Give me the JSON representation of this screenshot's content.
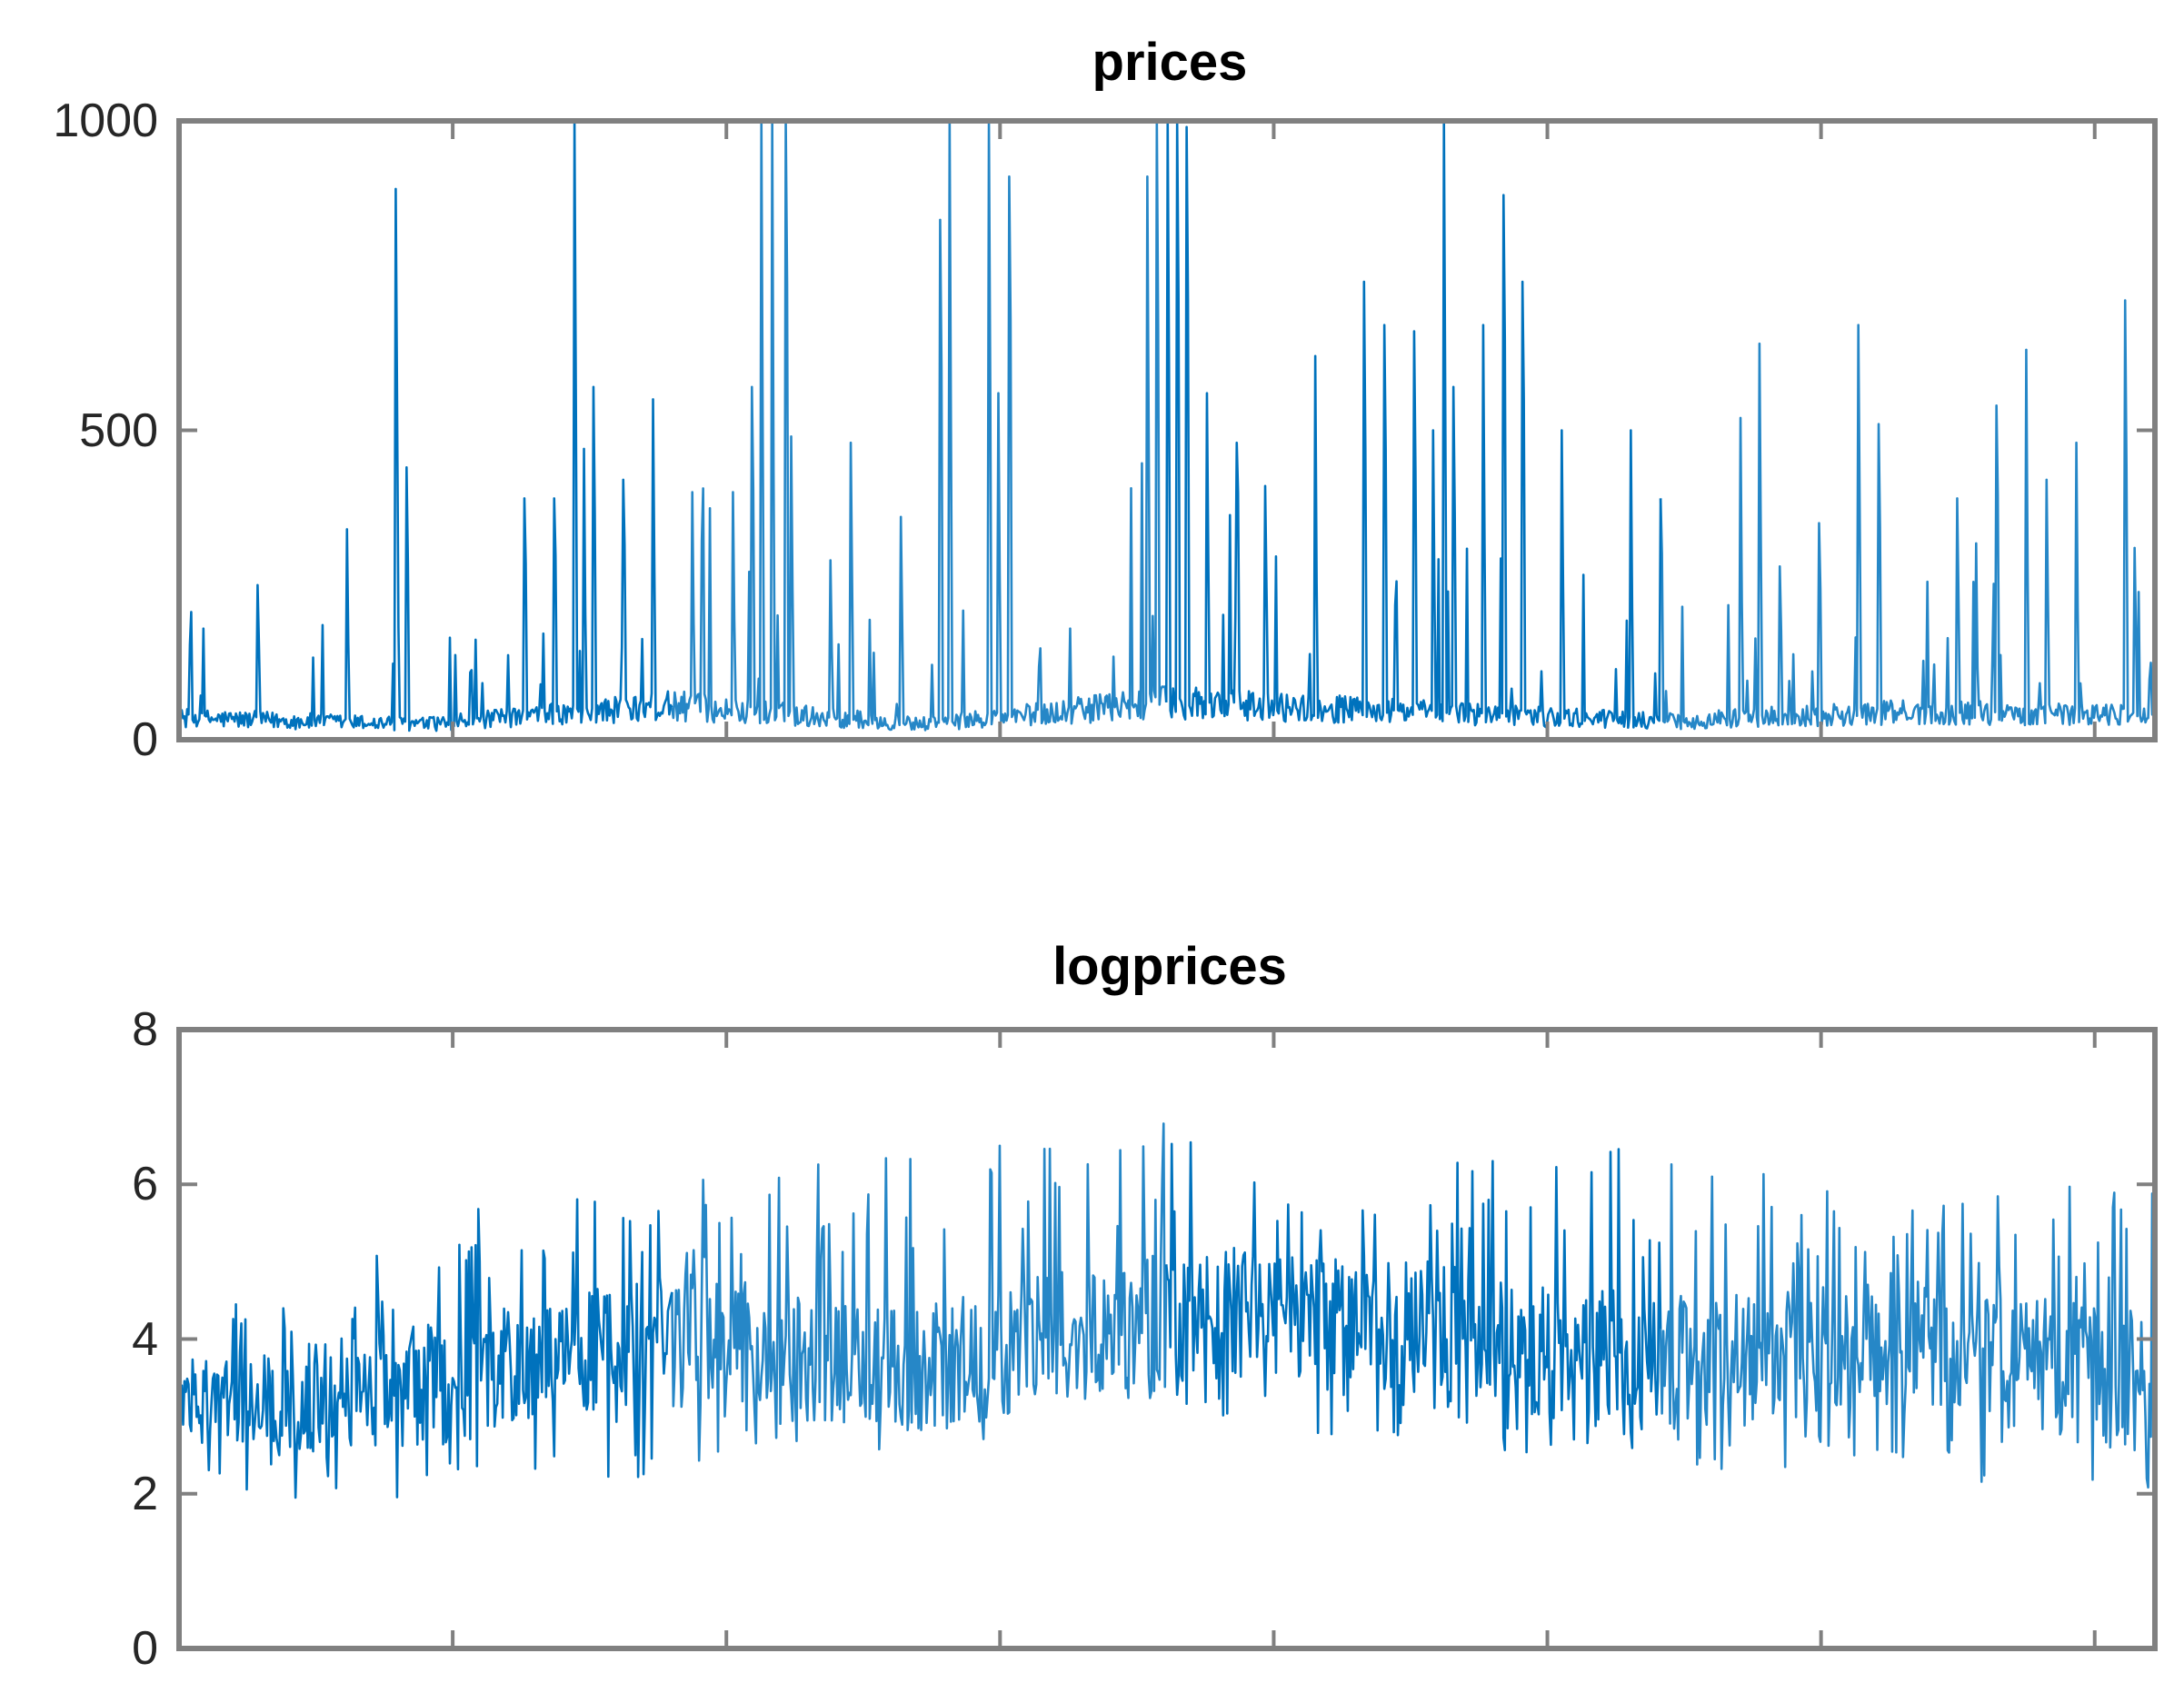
{
  "chart_data": [
    {
      "type": "line",
      "title": "prices",
      "xlabel": "",
      "ylabel": "",
      "ylim": [
        0,
        1000
      ],
      "yticks": [
        0,
        500,
        1000
      ],
      "ytick_labels": [
        "0",
        "500",
        "1000"
      ],
      "xticks_count": 7,
      "grid": false,
      "n_points": 1460,
      "series": [
        {
          "color": "#0072BD",
          "range": [
            0,
            1000
          ],
          "baseline_level": [
            35,
            25,
            55,
            25,
            60,
            45,
            30,
            45,
            40
          ],
          "spikes": [
            {
              "x": 0.04,
              "value": 250
            },
            {
              "x": 0.085,
              "value": 340
            },
            {
              "x": 0.11,
              "value": 890
            },
            {
              "x": 0.115,
              "value": 440
            },
            {
              "x": 0.175,
              "value": 390
            },
            {
              "x": 0.19,
              "value": 390
            },
            {
              "x": 0.21,
              "value": 570
            },
            {
              "x": 0.2,
              "value": 1000
            },
            {
              "x": 0.205,
              "value": 470
            },
            {
              "x": 0.225,
              "value": 420
            },
            {
              "x": 0.24,
              "value": 550
            },
            {
              "x": 0.26,
              "value": 400
            },
            {
              "x": 0.28,
              "value": 400
            },
            {
              "x": 0.29,
              "value": 570
            },
            {
              "x": 0.295,
              "value": 1000
            },
            {
              "x": 0.3,
              "value": 1000
            },
            {
              "x": 0.307,
              "value": 1000
            },
            {
              "x": 0.31,
              "value": 490
            },
            {
              "x": 0.33,
              "value": 290
            },
            {
              "x": 0.34,
              "value": 480
            },
            {
              "x": 0.365,
              "value": 360
            },
            {
              "x": 0.385,
              "value": 840
            },
            {
              "x": 0.39,
              "value": 1000
            },
            {
              "x": 0.41,
              "value": 1000
            },
            {
              "x": 0.415,
              "value": 560
            },
            {
              "x": 0.42,
              "value": 910
            },
            {
              "x": 0.49,
              "value": 910
            },
            {
              "x": 0.495,
              "value": 1000
            },
            {
              "x": 0.5,
              "value": 1000
            },
            {
              "x": 0.505,
              "value": 1000
            },
            {
              "x": 0.51,
              "value": 990
            },
            {
              "x": 0.505,
              "value": 670
            },
            {
              "x": 0.52,
              "value": 560
            },
            {
              "x": 0.535,
              "value": 480
            },
            {
              "x": 0.55,
              "value": 410
            },
            {
              "x": 0.575,
              "value": 620
            },
            {
              "x": 0.6,
              "value": 740
            },
            {
              "x": 0.61,
              "value": 670
            },
            {
              "x": 0.625,
              "value": 660
            },
            {
              "x": 0.635,
              "value": 500
            },
            {
              "x": 0.64,
              "value": 1000
            },
            {
              "x": 0.645,
              "value": 570
            },
            {
              "x": 0.66,
              "value": 670
            },
            {
              "x": 0.67,
              "value": 880
            },
            {
              "x": 0.68,
              "value": 740
            },
            {
              "x": 0.7,
              "value": 500
            },
            {
              "x": 0.735,
              "value": 500
            },
            {
              "x": 0.75,
              "value": 390
            },
            {
              "x": 0.79,
              "value": 520
            },
            {
              "x": 0.8,
              "value": 640
            },
            {
              "x": 0.81,
              "value": 280
            },
            {
              "x": 0.83,
              "value": 350
            },
            {
              "x": 0.85,
              "value": 670
            },
            {
              "x": 0.86,
              "value": 510
            },
            {
              "x": 0.9,
              "value": 390
            },
            {
              "x": 0.92,
              "value": 540
            },
            {
              "x": 0.935,
              "value": 630
            },
            {
              "x": 0.945,
              "value": 420
            },
            {
              "x": 0.96,
              "value": 480
            },
            {
              "x": 0.985,
              "value": 710
            },
            {
              "x": 0.99,
              "value": 310
            }
          ]
        }
      ]
    },
    {
      "type": "line",
      "title": "logprices",
      "xlabel": "",
      "ylabel": "",
      "ylim": [
        0,
        8
      ],
      "yticks": [
        0,
        2,
        4,
        6,
        8
      ],
      "ytick_labels": [
        "0",
        "2",
        "4",
        "6",
        "8"
      ],
      "xticks_count": 7,
      "grid": false,
      "n_points": 1460,
      "series": [
        {
          "color": "#0072BD",
          "range": [
            1.75,
            6.9
          ],
          "baseline_level": [
            3.1,
            3.3,
            3.9,
            3.5,
            4.3,
            4.1,
            3.5,
            3.9,
            3.3
          ],
          "envelope_high": [
            4.4,
            5.6,
            6.1,
            6.4,
            6.8,
            6.4,
            6.5,
            5.7,
            6.2
          ],
          "envelope_low": [
            1.9,
            1.95,
            2.2,
            2.6,
            3.0,
            2.6,
            2.3,
            2.2,
            2.0
          ]
        }
      ]
    }
  ]
}
